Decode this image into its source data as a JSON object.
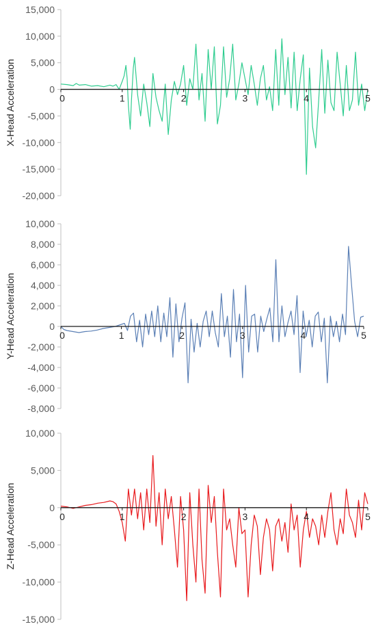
{
  "chart_data": [
    {
      "type": "line",
      "xlim": [
        0,
        5
      ],
      "ylim": [
        -20000,
        15000
      ],
      "yticks": [
        15000,
        10000,
        5000,
        0,
        -5000,
        -10000,
        -15000,
        -20000
      ],
      "ytick_labels": [
        "15,000",
        "10,000",
        "5,000",
        "0",
        "-5,000",
        "-10,000",
        "-15,000",
        "-20,000"
      ],
      "xticks": [
        0,
        1,
        2,
        3,
        4,
        5
      ],
      "xtick_labels": [
        "0",
        "1",
        "2",
        "3",
        "4",
        "5"
      ],
      "ylabel": "X-Head Acceleration",
      "color": "#2ecc8f",
      "series": [
        {
          "x": [
            0,
            0.1,
            0.2,
            0.25,
            0.3,
            0.4,
            0.5,
            0.6,
            0.7,
            0.8,
            0.85,
            0.9,
            0.95,
            1.0,
            1.03,
            1.06,
            1.08,
            1.1,
            1.13,
            1.15,
            1.18,
            1.2,
            1.25,
            1.3,
            1.35,
            1.4,
            1.45,
            1.5,
            1.55,
            1.6,
            1.65,
            1.7,
            1.75,
            1.8,
            1.85,
            1.9,
            1.95,
            2.0,
            2.05,
            2.1,
            2.15,
            2.2,
            2.25,
            2.3,
            2.35,
            2.4,
            2.45,
            2.5,
            2.55,
            2.6,
            2.65,
            2.7,
            2.75,
            2.8,
            2.85,
            2.9,
            2.95,
            3.0,
            3.05,
            3.1,
            3.15,
            3.2,
            3.25,
            3.3,
            3.35,
            3.4,
            3.45,
            3.5,
            3.55,
            3.6,
            3.65,
            3.7,
            3.75,
            3.8,
            3.85,
            3.9,
            3.95,
            4.0,
            4.05,
            4.1,
            4.15,
            4.2,
            4.25,
            4.3,
            4.35,
            4.4,
            4.45,
            4.5,
            4.55,
            4.6,
            4.65,
            4.7,
            4.75,
            4.8,
            4.85,
            4.9,
            4.95,
            5.0
          ],
          "y": [
            1000,
            900,
            700,
            1100,
            800,
            900,
            600,
            700,
            500,
            800,
            600,
            900,
            0,
            1500,
            2500,
            4500,
            2000,
            -3000,
            -7500,
            -2000,
            4000,
            6000,
            -1000,
            -5000,
            1000,
            -2500,
            -7000,
            3000,
            -1500,
            -4000,
            -6000,
            1000,
            -8500,
            -2000,
            1500,
            -1000,
            1000,
            4500,
            -3000,
            2000,
            0,
            8500,
            -2000,
            3000,
            -6000,
            7500,
            0,
            8000,
            -6500,
            -3000,
            8000,
            -1500,
            2000,
            8500,
            -2000,
            1000,
            5000,
            2000,
            -1000,
            4500,
            1000,
            -3000,
            2000,
            4500,
            -2000,
            500,
            -4000,
            7500,
            -3000,
            9500,
            -1000,
            6000,
            -3500,
            7000,
            -4000,
            2000,
            6500,
            -16000,
            4000,
            -7000,
            -11000,
            -2000,
            7500,
            -4500,
            5500,
            -2500,
            -4000,
            7000,
            1000,
            -5000,
            4500,
            -4000,
            -2000,
            7000,
            -3000,
            1000,
            -4000,
            0
          ]
        }
      ]
    },
    {
      "type": "line",
      "xlim": [
        0,
        5
      ],
      "ylim": [
        -8000,
        10000
      ],
      "yticks": [
        10000,
        8000,
        6000,
        4000,
        2000,
        0,
        -2000,
        -4000,
        -6000,
        -8000
      ],
      "ytick_labels": [
        "10,000",
        "8,000",
        "6,000",
        "4,000",
        "2,000",
        "0",
        "-2,000",
        "-4,000",
        "-6,000",
        "-8,000"
      ],
      "xticks": [
        0,
        1,
        2,
        3,
        4,
        5
      ],
      "xtick_labels": [
        "0",
        "1",
        "2",
        "3",
        "4",
        "5"
      ],
      "ylabel": "Y-Head Acceleration",
      "color": "#5a7fb5",
      "series": [
        {
          "x": [
            0,
            0.05,
            0.1,
            0.2,
            0.3,
            0.4,
            0.5,
            0.6,
            0.7,
            0.8,
            0.9,
            1.0,
            1.05,
            1.1,
            1.15,
            1.2,
            1.25,
            1.3,
            1.35,
            1.4,
            1.45,
            1.5,
            1.55,
            1.6,
            1.65,
            1.7,
            1.75,
            1.8,
            1.85,
            1.9,
            1.95,
            2.0,
            2.05,
            2.1,
            2.15,
            2.2,
            2.25,
            2.3,
            2.35,
            2.4,
            2.45,
            2.5,
            2.55,
            2.6,
            2.65,
            2.7,
            2.75,
            2.8,
            2.85,
            2.9,
            2.95,
            3.0,
            3.05,
            3.1,
            3.15,
            3.2,
            3.25,
            3.3,
            3.35,
            3.4,
            3.45,
            3.5,
            3.55,
            3.6,
            3.65,
            3.7,
            3.75,
            3.8,
            3.85,
            3.9,
            3.95,
            4.0,
            4.05,
            4.1,
            4.15,
            4.2,
            4.25,
            4.3,
            4.35,
            4.4,
            4.45,
            4.5,
            4.55,
            4.6,
            4.65,
            4.7,
            4.75,
            4.8,
            4.85,
            4.9,
            4.95,
            5.0
          ],
          "y": [
            0,
            -300,
            -400,
            -500,
            -600,
            -500,
            -450,
            -350,
            -200,
            -100,
            0,
            200,
            300,
            -400,
            1000,
            1300,
            -1500,
            600,
            -2000,
            1200,
            -800,
            1500,
            -1000,
            2000,
            -1500,
            1300,
            -1000,
            2800,
            -3000,
            2200,
            -1500,
            800,
            2300,
            -5500,
            700,
            -2500,
            300,
            -2000,
            500,
            1500,
            -1000,
            1500,
            -600,
            -2000,
            3200,
            -1000,
            1000,
            -3000,
            3600,
            -1500,
            1200,
            -5000,
            4000,
            -2500,
            1000,
            1200,
            -2500,
            1000,
            -500,
            700,
            1800,
            -1500,
            6500,
            -1500,
            2000,
            -1000,
            400,
            1500,
            -800,
            3000,
            -4500,
            1500,
            -1000,
            600,
            -2000,
            1000,
            1400,
            -1500,
            800,
            -5500,
            1000,
            -1000,
            500,
            -1500,
            1200,
            -800,
            7800,
            4000,
            500,
            -1000,
            900,
            1000
          ]
        }
      ]
    },
    {
      "type": "line",
      "xlim": [
        0,
        5
      ],
      "ylim": [
        -15000,
        10000
      ],
      "yticks": [
        10000,
        5000,
        0,
        -5000,
        -10000,
        -15000
      ],
      "ytick_labels": [
        "10,000",
        "5,000",
        "0",
        "-5,000",
        "-10,000",
        "-15,000"
      ],
      "xticks": [
        0,
        1,
        2,
        3,
        4,
        5
      ],
      "xtick_labels": [
        "0",
        "1",
        "2",
        "3",
        "4",
        "5"
      ],
      "ylabel": "Z-Head Acceleration",
      "color": "#e8191c",
      "series": [
        {
          "x": [
            0,
            0.1,
            0.2,
            0.3,
            0.4,
            0.5,
            0.6,
            0.7,
            0.8,
            0.85,
            0.9,
            0.95,
            1.0,
            1.05,
            1.1,
            1.15,
            1.2,
            1.25,
            1.3,
            1.35,
            1.4,
            1.45,
            1.5,
            1.55,
            1.6,
            1.65,
            1.7,
            1.75,
            1.8,
            1.85,
            1.9,
            1.95,
            2.0,
            2.05,
            2.1,
            2.15,
            2.2,
            2.25,
            2.3,
            2.35,
            2.4,
            2.45,
            2.5,
            2.55,
            2.6,
            2.65,
            2.7,
            2.75,
            2.8,
            2.85,
            2.9,
            2.95,
            3.0,
            3.05,
            3.1,
            3.15,
            3.2,
            3.25,
            3.3,
            3.35,
            3.4,
            3.45,
            3.5,
            3.55,
            3.6,
            3.65,
            3.7,
            3.75,
            3.8,
            3.85,
            3.9,
            3.95,
            4.0,
            4.05,
            4.1,
            4.15,
            4.2,
            4.25,
            4.3,
            4.35,
            4.4,
            4.45,
            4.5,
            4.55,
            4.6,
            4.65,
            4.7,
            4.75,
            4.8,
            4.85,
            4.9,
            4.95,
            5.0
          ],
          "y": [
            200,
            100,
            -100,
            100,
            300,
            400,
            600,
            700,
            900,
            800,
            500,
            -500,
            -2000,
            -4500,
            2500,
            -1000,
            2500,
            -1500,
            2000,
            -3000,
            2500,
            -2000,
            7000,
            -2500,
            2000,
            -5000,
            2500,
            -1500,
            1500,
            -3000,
            -8000,
            1500,
            -3000,
            -12500,
            2000,
            -5000,
            -10000,
            2500,
            -7000,
            -11500,
            3000,
            -2000,
            1500,
            -6000,
            -12000,
            2500,
            -3000,
            -1500,
            -5000,
            -8000,
            0,
            -3500,
            -3000,
            -12000,
            -5000,
            -1000,
            -2500,
            -9000,
            -4000,
            -1500,
            -3000,
            -8500,
            -2500,
            -1500,
            -4500,
            -2000,
            -6000,
            500,
            -3000,
            -1000,
            -8000,
            -3000,
            -500,
            -4000,
            -1500,
            -2500,
            -5000,
            -1000,
            -4000,
            -500,
            2000,
            -3000,
            -5000,
            -1500,
            -3500,
            2500,
            -1000,
            -2000,
            -4000,
            1000,
            -3000,
            2000,
            500
          ]
        }
      ]
    }
  ]
}
